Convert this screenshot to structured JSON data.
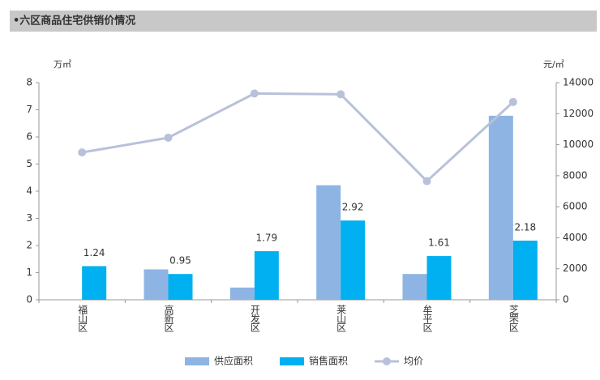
{
  "chart_data": {
    "type": "bar",
    "title": "•六区商品住宅供销价情况",
    "y_label": "万㎡",
    "y2_label": "元/㎡",
    "categories": [
      "福山区",
      "高新区",
      "开发区",
      "莱山区",
      "牟平区",
      "芝罘区"
    ],
    "series": [
      {
        "name": "供应面积",
        "color": "#8eb4e3",
        "type": "bar",
        "values": [
          null,
          1.12,
          0.45,
          4.22,
          0.95,
          6.78
        ]
      },
      {
        "name": "销售面积",
        "color": "#00b0f0",
        "type": "bar",
        "values": [
          1.24,
          0.95,
          1.79,
          2.92,
          1.61,
          2.18
        ],
        "show_labels": true
      },
      {
        "name": "均价",
        "color": "#b8c1da",
        "type": "line",
        "axis": "y2",
        "values": [
          9500,
          10450,
          13300,
          13250,
          7650,
          12750
        ]
      }
    ],
    "ylim": [
      0,
      8
    ],
    "yticks": [
      0,
      1,
      2,
      3,
      4,
      5,
      6,
      7,
      8
    ],
    "y2lim": [
      0,
      14000
    ],
    "y2ticks": [
      0,
      2000,
      4000,
      6000,
      8000,
      10000,
      12000,
      14000
    ],
    "legend": "bottom"
  }
}
